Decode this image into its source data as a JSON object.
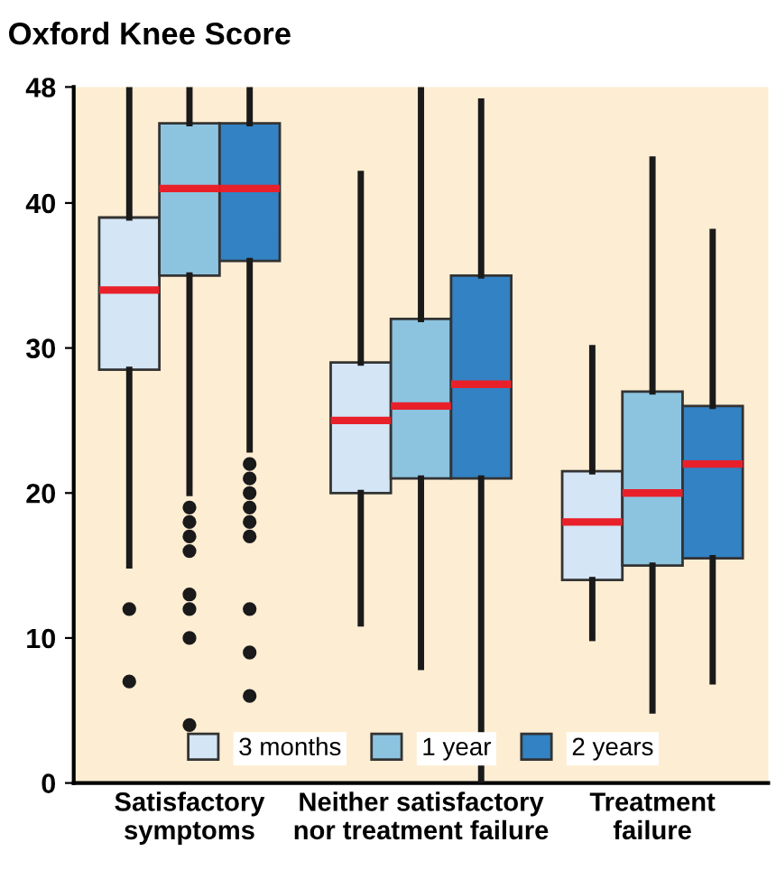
{
  "chart_data": {
    "type": "box",
    "title": "Oxford Knee Score",
    "categories": [
      "Satisfactory\nsymptoms",
      "Neither satisfactory\nnor treatment failure",
      "Treatment\nfailure"
    ],
    "series": [
      {
        "name": "3 months",
        "color": "#d4e5f5",
        "boxes": [
          {
            "low": 15,
            "q1": 28.5,
            "median": 34,
            "q3": 39,
            "high": 48,
            "outliers": [
              12,
              7
            ]
          },
          {
            "low": 11,
            "q1": 20,
            "median": 25,
            "q3": 29,
            "high": 42
          },
          {
            "low": 10,
            "q1": 14,
            "median": 18,
            "q3": 21.5,
            "high": 30
          }
        ]
      },
      {
        "name": "1 year",
        "color": "#8cc4e0",
        "boxes": [
          {
            "low": 20,
            "q1": 35,
            "median": 41,
            "q3": 45.5,
            "high": 48,
            "outliers": [
              19,
              18,
              17,
              16,
              13,
              12,
              10,
              4
            ]
          },
          {
            "low": 8,
            "q1": 21,
            "median": 26,
            "q3": 32,
            "high": 48
          },
          {
            "low": 5,
            "q1": 15,
            "median": 20,
            "q3": 27,
            "high": 43
          }
        ]
      },
      {
        "name": "2 years",
        "color": "#3282c4",
        "boxes": [
          {
            "low": 23,
            "q1": 36,
            "median": 41,
            "q3": 45.5,
            "high": 48,
            "outliers": [
              22,
              21,
              20,
              19,
              18,
              17,
              12,
              9,
              6
            ]
          },
          {
            "low": 0,
            "q1": 21,
            "median": 27.5,
            "q3": 35,
            "high": 47
          },
          {
            "low": 7,
            "q1": 15.5,
            "median": 22,
            "q3": 26,
            "high": 38
          }
        ]
      }
    ],
    "ylim": [
      0,
      48
    ],
    "yticks": [
      0,
      10,
      20,
      30,
      40,
      48
    ],
    "grid": false,
    "legend": "bottom"
  }
}
